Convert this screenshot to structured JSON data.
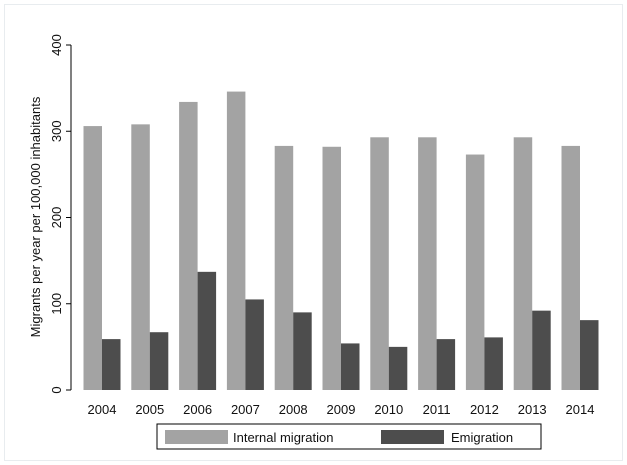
{
  "chart_data": {
    "type": "bar",
    "title": "",
    "xlabel": "",
    "ylabel": "Migrants per year per 100,000 inhabitants",
    "ylim": [
      0,
      400
    ],
    "yticks": [
      0,
      100,
      200,
      300,
      400
    ],
    "grid": false,
    "legend_position": "bottom",
    "categories": [
      "2004",
      "2005",
      "2006",
      "2007",
      "2008",
      "2009",
      "2010",
      "2011",
      "2012",
      "2013",
      "2014"
    ],
    "series": [
      {
        "name": "Internal migration",
        "color": "#a3a3a3",
        "values": [
          306,
          308,
          334,
          346,
          283,
          282,
          293,
          293,
          273,
          293,
          283
        ]
      },
      {
        "name": "Emigration",
        "color": "#4d4d4d",
        "values": [
          59,
          67,
          137,
          105,
          90,
          54,
          50,
          59,
          61,
          92,
          81
        ]
      }
    ]
  }
}
